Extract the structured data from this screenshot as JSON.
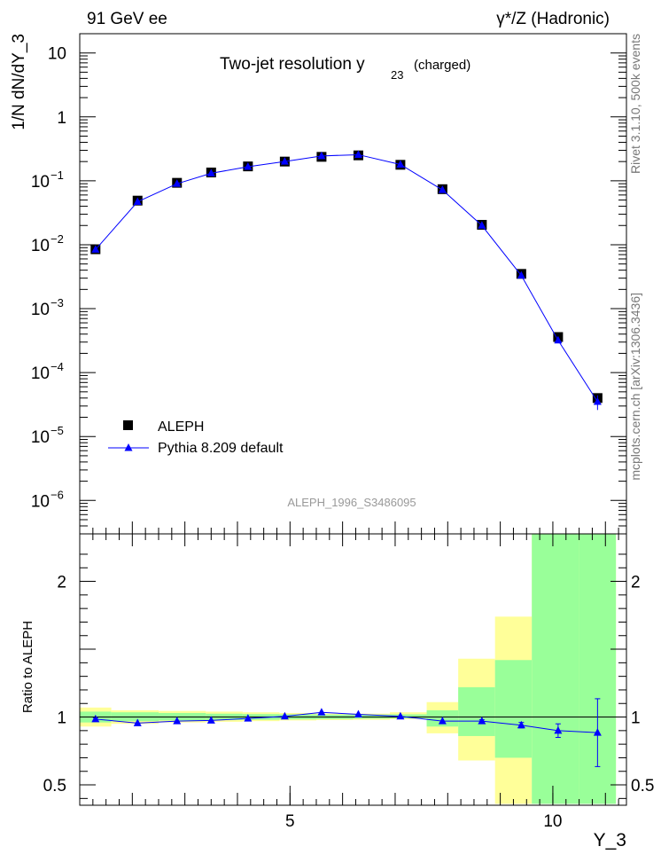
{
  "header": {
    "left_label": "91 GeV ee",
    "right_label": "γ*/Z (Hadronic)"
  },
  "side_labels": {
    "rivet": "Rivet 3.1.10,  500k events",
    "mcplots": "mcplots.cern.ch [arXiv:1306.3436]"
  },
  "chart_data": [
    {
      "type": "line",
      "title": "Two-jet resolution y",
      "title_subscript": "23",
      "title_suffix": "(charged)",
      "analysis_id": "ALEPH_1996_S3486095",
      "ylabel": "1/N dN/dY_3",
      "xlabel": "Y_3",
      "yscale": "log",
      "xlim": [
        1.0,
        11.4
      ],
      "ylim": [
        3e-07,
        20
      ],
      "y_ticks": [
        {
          "value": 1e-06,
          "label": "10",
          "exp": "−6"
        },
        {
          "value": 1e-05,
          "label": "10",
          "exp": "−5"
        },
        {
          "value": 0.0001,
          "label": "10",
          "exp": "−4"
        },
        {
          "value": 0.001,
          "label": "10",
          "exp": "−3"
        },
        {
          "value": 0.01,
          "label": "10",
          "exp": "−2"
        },
        {
          "value": 0.1,
          "label": "10",
          "exp": "−1"
        },
        {
          "value": 1,
          "label": "1",
          "exp": ""
        },
        {
          "value": 10,
          "label": "10",
          "exp": ""
        }
      ],
      "legend_position": "lower-left",
      "series": [
        {
          "name": "ALEPH",
          "style": "markers",
          "color": "#000000",
          "x": [
            1.3,
            2.1,
            2.85,
            3.5,
            4.2,
            4.9,
            5.6,
            6.3,
            7.1,
            7.9,
            8.65,
            9.4,
            10.1,
            10.85
          ],
          "values": [
            0.0085,
            0.049,
            0.093,
            0.135,
            0.168,
            0.2,
            0.237,
            0.25,
            0.178,
            0.074,
            0.0205,
            0.0035,
            0.00036,
            4e-05
          ]
        },
        {
          "name": "Pythia 8.209 default",
          "style": "line+triangles",
          "color": "#0000ff",
          "x": [
            1.3,
            2.1,
            2.85,
            3.5,
            4.2,
            4.9,
            5.6,
            6.3,
            7.1,
            7.9,
            8.65,
            9.4,
            10.1,
            10.85
          ],
          "values": [
            0.0084,
            0.047,
            0.09,
            0.131,
            0.166,
            0.2,
            0.245,
            0.256,
            0.18,
            0.072,
            0.02,
            0.0033,
            0.00032,
            3.5e-05
          ],
          "errors": [
            0,
            0,
            0,
            0,
            0,
            0,
            0,
            0,
            0,
            0,
            0,
            0,
            0,
            9e-06
          ]
        }
      ]
    },
    {
      "type": "line",
      "ylabel": "Ratio to ALEPH",
      "xlabel": "Y_3",
      "xlim": [
        1.0,
        11.4
      ],
      "ylim": [
        0.35,
        2.35
      ],
      "y_tick_labels": [
        {
          "value": 0.5,
          "label": "0.5"
        },
        {
          "value": 1,
          "label": "1"
        },
        {
          "value": 2,
          "label": "2"
        }
      ],
      "x_tick_labels": [
        {
          "value": 5,
          "label": "5"
        },
        {
          "value": 10,
          "label": "10"
        }
      ],
      "reference_line": 1.0,
      "uncertainty_bands": {
        "bin_edges": [
          1.0,
          1.6,
          2.5,
          3.4,
          4.1,
          4.8,
          5.5,
          6.2,
          6.9,
          7.6,
          8.2,
          8.9,
          9.6,
          10.5,
          11.2
        ],
        "yellow_low": [
          0.93,
          0.95,
          0.96,
          0.965,
          0.97,
          0.975,
          0.978,
          0.98,
          0.985,
          0.88,
          0.68,
          0.36,
          0.36,
          0.36
        ],
        "yellow_high": [
          1.07,
          1.05,
          1.045,
          1.04,
          1.035,
          1.03,
          1.025,
          1.025,
          1.035,
          1.11,
          1.43,
          1.74,
          2.35,
          2.35
        ],
        "green_low": [
          0.96,
          0.97,
          0.975,
          0.978,
          0.98,
          0.983,
          0.985,
          0.988,
          0.99,
          0.93,
          0.86,
          0.7,
          0.36,
          0.36
        ],
        "green_high": [
          1.04,
          1.035,
          1.03,
          1.025,
          1.022,
          1.02,
          1.018,
          1.018,
          1.02,
          1.05,
          1.22,
          1.42,
          2.35,
          2.35
        ]
      },
      "series": [
        {
          "name": "Pythia 8.209 default / ALEPH",
          "color": "#0000ff",
          "x": [
            1.3,
            2.1,
            2.85,
            3.5,
            4.2,
            4.9,
            5.6,
            6.3,
            7.1,
            7.9,
            8.65,
            9.4,
            10.1,
            10.85
          ],
          "values": [
            0.985,
            0.955,
            0.97,
            0.975,
            0.99,
            1.005,
            1.035,
            1.02,
            1.005,
            0.97,
            0.97,
            0.94,
            0.9,
            0.885
          ],
          "err_low": [
            0.01,
            0.005,
            0.005,
            0.005,
            0.005,
            0.005,
            0.005,
            0.005,
            0.005,
            0.005,
            0.01,
            0.02,
            0.05,
            0.25
          ],
          "err_high": [
            0.01,
            0.005,
            0.005,
            0.005,
            0.005,
            0.005,
            0.005,
            0.005,
            0.005,
            0.005,
            0.01,
            0.02,
            0.05,
            0.25
          ]
        }
      ]
    }
  ]
}
